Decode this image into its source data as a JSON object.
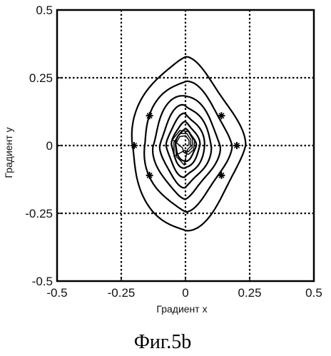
{
  "chart_data": {
    "type": "contour",
    "xlabel": "Градиент x",
    "ylabel": "Градиент y",
    "xlim": [
      -0.5,
      0.5
    ],
    "ylim": [
      -0.5,
      0.5
    ],
    "x_ticks": [
      -0.5,
      -0.25,
      0,
      0.25,
      0.5
    ],
    "y_ticks": [
      -0.5,
      -0.25,
      0,
      0.25,
      0.5
    ],
    "x_tick_labels": [
      "-0.5",
      "-0.25",
      "0",
      "0.25",
      "0.5"
    ],
    "y_tick_labels": [
      "0.5",
      "0.25",
      "0",
      "-0.25",
      "-0.5"
    ],
    "grid": true,
    "grid_style": "dotted",
    "contours": [
      {
        "level": 1,
        "x_extent": 0.22,
        "y_extent": 0.32
      },
      {
        "level": 2,
        "x_extent": 0.17,
        "y_extent": 0.24
      },
      {
        "level": 3,
        "x_extent": 0.13,
        "y_extent": 0.19
      },
      {
        "level": 4,
        "x_extent": 0.1,
        "y_extent": 0.15
      },
      {
        "level": 5,
        "x_extent": 0.075,
        "y_extent": 0.115
      },
      {
        "level": 6,
        "x_extent": 0.055,
        "y_extent": 0.085
      },
      {
        "level": 7,
        "x_extent": 0.04,
        "y_extent": 0.06
      }
    ],
    "markers": [
      {
        "x": -0.2,
        "y": 0
      },
      {
        "x": 0.2,
        "y": 0
      },
      {
        "x": -0.14,
        "y": 0.11
      },
      {
        "x": 0.14,
        "y": 0.11
      },
      {
        "x": -0.14,
        "y": -0.11
      },
      {
        "x": 0.14,
        "y": -0.11
      }
    ]
  },
  "caption": "Фиг.5b"
}
